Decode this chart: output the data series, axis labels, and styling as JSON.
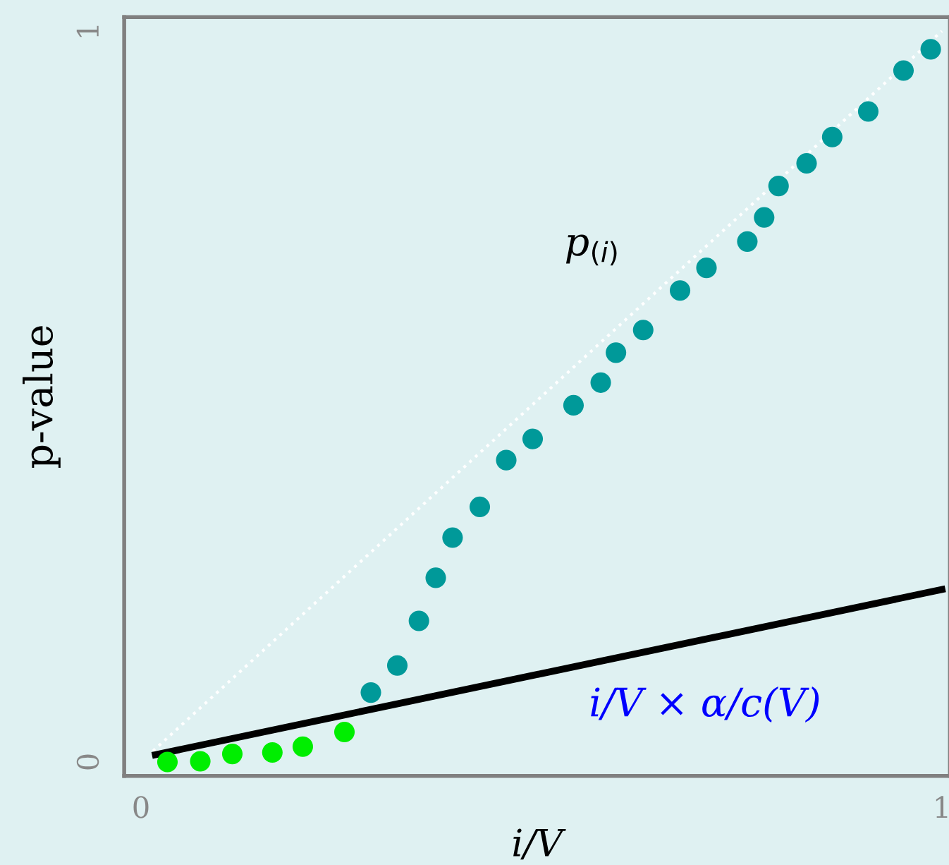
{
  "chart_data": {
    "type": "scatter",
    "xlabel": "i/V",
    "ylabel": "p-value",
    "xlim": [
      -0.021,
      1.01
    ],
    "ylim": [
      -0.019,
      1.019
    ],
    "xticks": [
      0,
      1
    ],
    "yticks": [
      0,
      1
    ],
    "grid": false,
    "legend": false,
    "marker": "circle",
    "series": [
      {
        "type": "line",
        "color": "#ffffff",
        "line_style": "dotted",
        "marker": "none",
        "x": [
          0.015,
          1.0
        ],
        "values": [
          0.015,
          1.0
        ]
      },
      {
        "type": "line",
        "color": "#000000",
        "line_style": "solid",
        "marker": "none",
        "x": [
          0.018,
          1.0
        ],
        "values": [
          0.01,
          0.236
        ]
      },
      {
        "color": "#00ee00",
        "x": [
          0.033,
          0.074,
          0.114,
          0.164,
          0.202,
          0.254
        ],
        "values": [
          0.0,
          0.001,
          0.011,
          0.013,
          0.021,
          0.041
        ]
      },
      {
        "color": "#009999",
        "x": [
          0.287,
          0.32,
          0.347,
          0.368,
          0.389,
          0.423,
          0.456,
          0.489,
          0.54,
          0.574,
          0.593,
          0.627,
          0.673,
          0.706,
          0.757,
          0.778,
          0.796,
          0.831,
          0.863,
          0.908,
          0.952,
          0.986
        ],
        "values": [
          0.095,
          0.132,
          0.193,
          0.252,
          0.307,
          0.349,
          0.413,
          0.442,
          0.488,
          0.519,
          0.56,
          0.591,
          0.645,
          0.676,
          0.712,
          0.745,
          0.788,
          0.819,
          0.855,
          0.89,
          0.946,
          0.975
        ]
      }
    ],
    "annotations": [
      "p$_{(i)}$",
      "i/V × α/c(V)"
    ]
  }
}
